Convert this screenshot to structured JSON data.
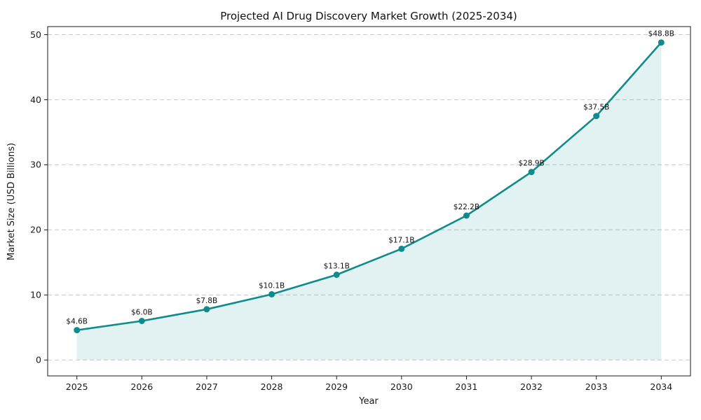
{
  "chart_data": {
    "type": "line",
    "title": "Projected AI Drug Discovery Market Growth (2025-2034)",
    "xlabel": "Year",
    "ylabel": "Market Size (USD Billions)",
    "x": [
      2025,
      2026,
      2027,
      2028,
      2029,
      2030,
      2031,
      2032,
      2033,
      2034
    ],
    "series": [
      {
        "name": "Market Size (USD Billions)",
        "values": [
          4.6,
          6.0,
          7.8,
          10.1,
          13.1,
          17.1,
          22.2,
          28.9,
          37.5,
          48.8
        ]
      }
    ],
    "point_labels": [
      "$4.6B",
      "$6.0B",
      "$7.8B",
      "$10.1B",
      "$13.1B",
      "$17.1B",
      "$22.2B",
      "$28.9B",
      "$37.5B",
      "$48.8B"
    ],
    "xticks": [
      2025,
      2026,
      2027,
      2028,
      2029,
      2030,
      2031,
      2032,
      2033,
      2034
    ],
    "yticks": [
      0,
      10,
      20,
      30,
      40,
      50
    ],
    "xlim": [
      2024.55,
      2034.45
    ],
    "ylim": [
      -2.44,
      51.24
    ],
    "area_baseline": 0,
    "grid": "horizontal-dashed",
    "legend": "none",
    "colors": {
      "line": "#0f8b8b",
      "marker": "#0f8b8b",
      "fill": "#0f8b8b",
      "fill_opacity": 0.12,
      "gridline": "#c9c9c9",
      "spine": "#1a1a1a",
      "tick_text": "#1a1a1a",
      "annotation_text": "#111111"
    }
  }
}
